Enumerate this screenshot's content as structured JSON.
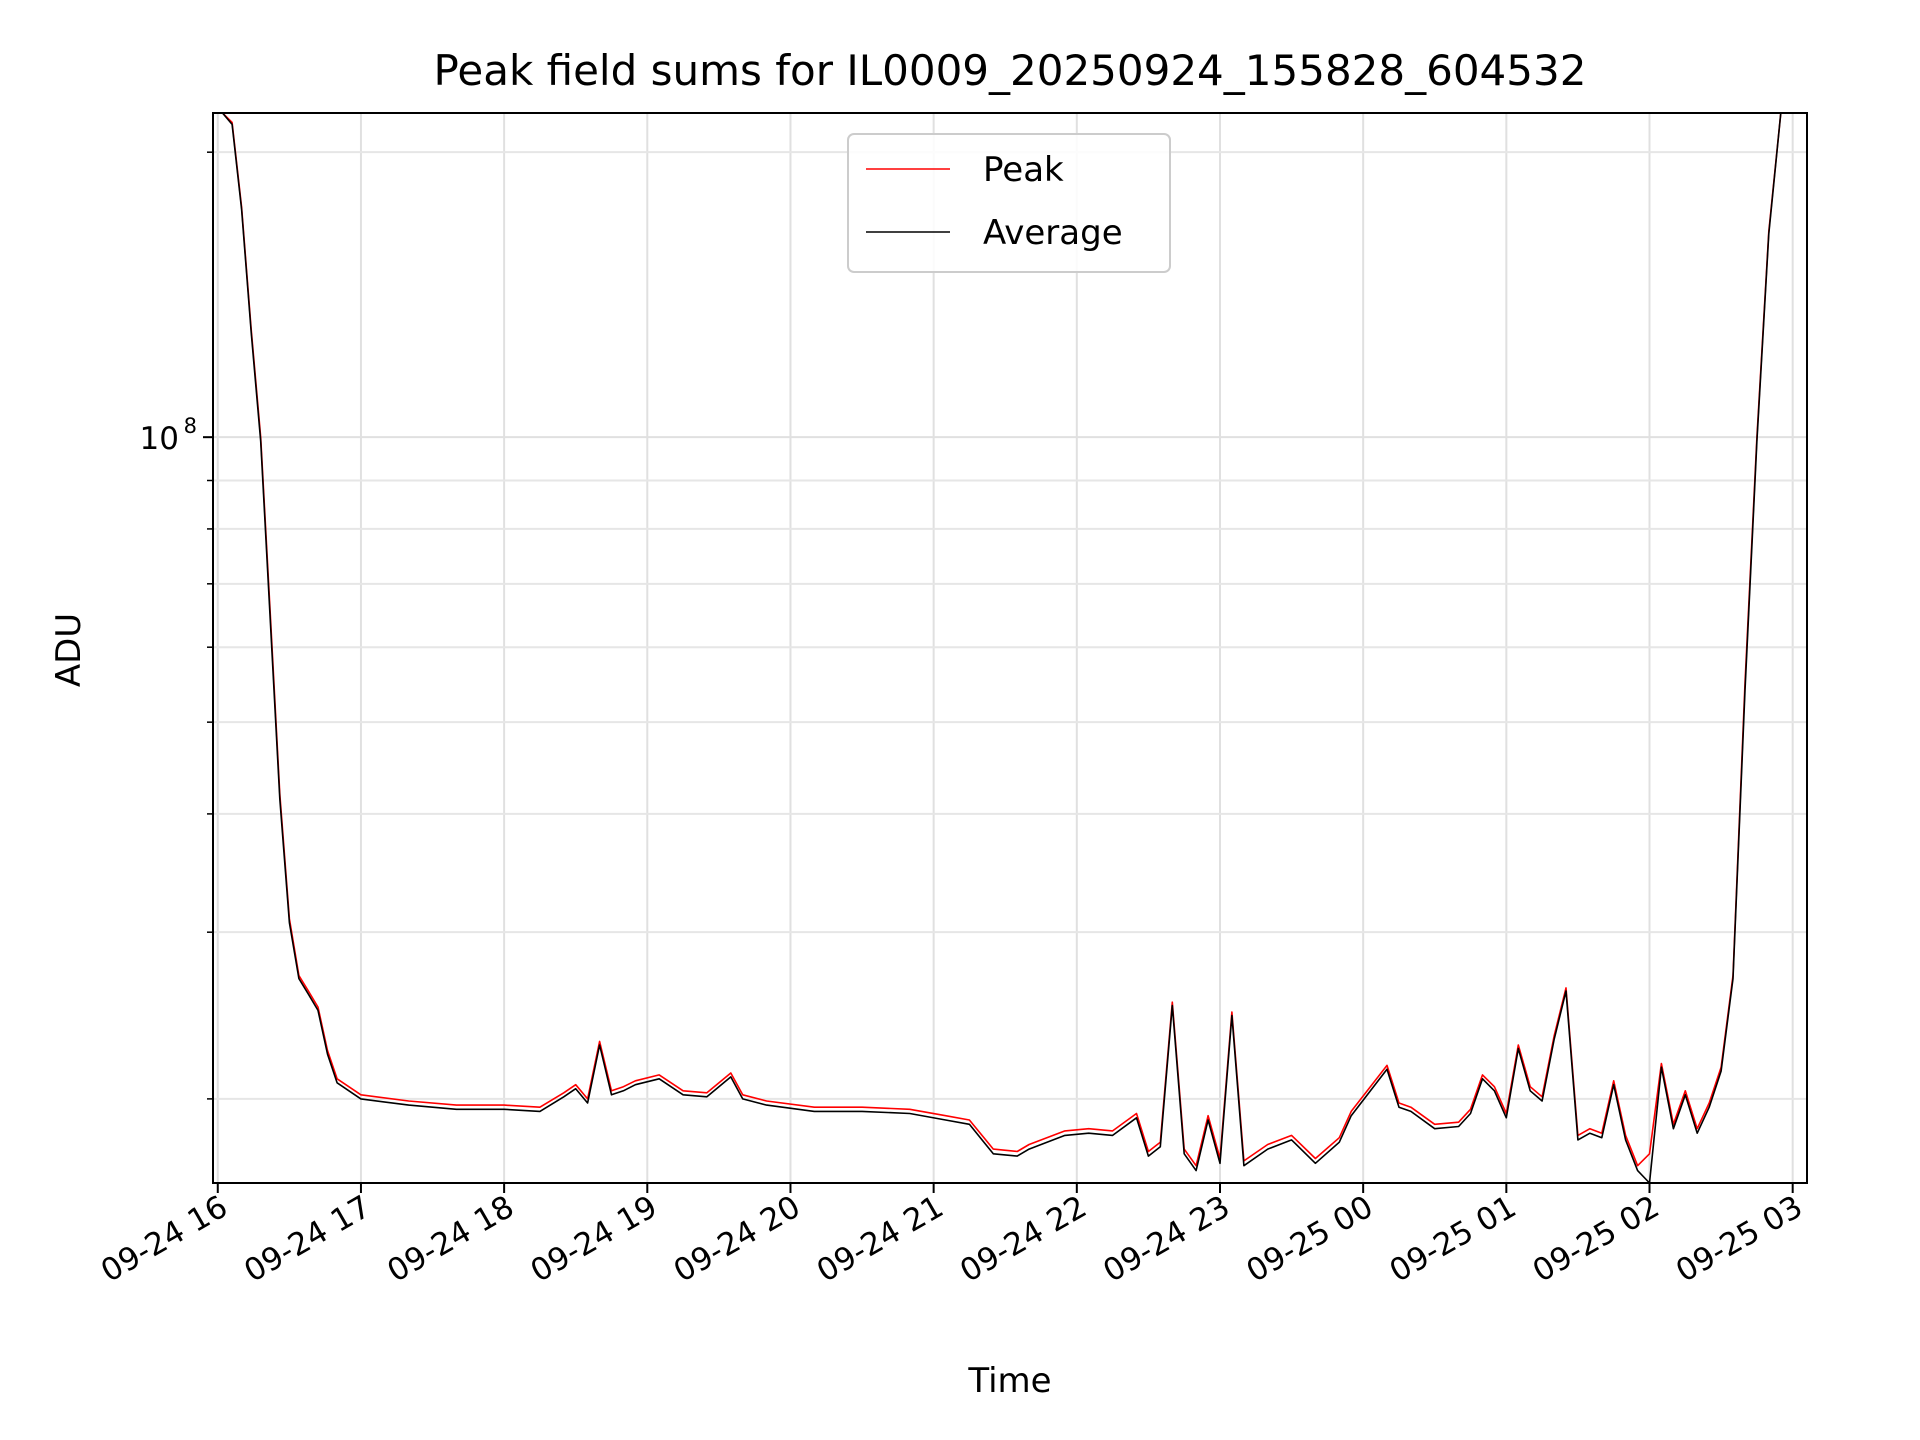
{
  "chart_data": {
    "type": "line",
    "title": "Peak field sums for IL0009_20250924_155828_604532",
    "xlabel": "Time",
    "ylabel": "ADU",
    "y_scale": "log",
    "y_tick_labels": [
      {
        "base": "10",
        "exponent": "8",
        "value": 100000000
      }
    ],
    "ylim": [
      16300000,
      220000000
    ],
    "x_tick_labels": [
      "09-24 16",
      "09-24 17",
      "09-24 18",
      "09-24 19",
      "09-24 20",
      "09-24 21",
      "09-24 22",
      "09-24 23",
      "09-25 00",
      "09-25 01",
      "09-25 02",
      "09-25 03"
    ],
    "xlim": [
      "2025-09-24 15:58",
      "2025-09-25 03:06"
    ],
    "grid": true,
    "legend_position": "top-center",
    "colors": {
      "Peak": "#ff0000",
      "Average": "#000000"
    },
    "series": [
      {
        "name": "Peak",
        "x": [
          "2025-09-24 15:58",
          "2025-09-24 16:02",
          "2025-09-24 16:06",
          "2025-09-24 16:10",
          "2025-09-24 16:14",
          "2025-09-24 16:18",
          "2025-09-24 16:22",
          "2025-09-24 16:26",
          "2025-09-24 16:30",
          "2025-09-24 16:34",
          "2025-09-24 16:38",
          "2025-09-24 16:42",
          "2025-09-24 16:46",
          "2025-09-24 16:50",
          "2025-09-24 17:00",
          "2025-09-24 17:20",
          "2025-09-24 17:40",
          "2025-09-24 18:00",
          "2025-09-24 18:15",
          "2025-09-24 18:25",
          "2025-09-24 18:30",
          "2025-09-24 18:35",
          "2025-09-24 18:40",
          "2025-09-24 18:45",
          "2025-09-24 18:50",
          "2025-09-24 18:55",
          "2025-09-24 19:05",
          "2025-09-24 19:15",
          "2025-09-24 19:25",
          "2025-09-24 19:35",
          "2025-09-24 19:40",
          "2025-09-24 19:50",
          "2025-09-24 20:10",
          "2025-09-24 20:30",
          "2025-09-24 20:50",
          "2025-09-24 21:05",
          "2025-09-24 21:15",
          "2025-09-24 21:25",
          "2025-09-24 21:35",
          "2025-09-24 21:40",
          "2025-09-24 21:55",
          "2025-09-24 22:05",
          "2025-09-24 22:15",
          "2025-09-24 22:25",
          "2025-09-24 22:30",
          "2025-09-24 22:35",
          "2025-09-24 22:40",
          "2025-09-24 22:45",
          "2025-09-24 22:50",
          "2025-09-24 22:55",
          "2025-09-24 23:00",
          "2025-09-24 23:05",
          "2025-09-24 23:10",
          "2025-09-24 23:20",
          "2025-09-24 23:30",
          "2025-09-24 23:40",
          "2025-09-24 23:50",
          "2025-09-24 23:55",
          "2025-09-25 00:10",
          "2025-09-25 00:15",
          "2025-09-25 00:20",
          "2025-09-25 00:30",
          "2025-09-25 00:40",
          "2025-09-25 00:45",
          "2025-09-25 00:50",
          "2025-09-25 00:55",
          "2025-09-25 01:00",
          "2025-09-25 01:05",
          "2025-09-25 01:10",
          "2025-09-25 01:15",
          "2025-09-25 01:20",
          "2025-09-25 01:25",
          "2025-09-25 01:30",
          "2025-09-25 01:35",
          "2025-09-25 01:40",
          "2025-09-25 01:45",
          "2025-09-25 01:50",
          "2025-09-25 01:55",
          "2025-09-25 02:00",
          "2025-09-25 02:05",
          "2025-09-25 02:10",
          "2025-09-25 02:15",
          "2025-09-25 02:20",
          "2025-09-25 02:25",
          "2025-09-25 02:30",
          "2025-09-25 02:35",
          "2025-09-25 02:40",
          "2025-09-25 02:45",
          "2025-09-25 02:50",
          "2025-09-25 02:55"
        ],
        "values": [
          220000000,
          220000000,
          215000000,
          175000000,
          130000000,
          100000000,
          65000000,
          42000000,
          31000000,
          27000000,
          26000000,
          25000000,
          22500000,
          21000000,
          20200000,
          19900000,
          19700000,
          19700000,
          19600000,
          20300000,
          20700000,
          20000000,
          23000000,
          20400000,
          20600000,
          20900000,
          21200000,
          20400000,
          20300000,
          21300000,
          20200000,
          19900000,
          19600000,
          19600000,
          19500000,
          19200000,
          19000000,
          17700000,
          17600000,
          17900000,
          18500000,
          18600000,
          18500000,
          19300000,
          17600000,
          18000000,
          25300000,
          17700000,
          17000000,
          19200000,
          17300000,
          24700000,
          17200000,
          17900000,
          18300000,
          17300000,
          18200000,
          19400000,
          21700000,
          19800000,
          19600000,
          18800000,
          18900000,
          19500000,
          21200000,
          20600000,
          19300000,
          22800000,
          20600000,
          20100000,
          23300000,
          26200000,
          18300000,
          18600000,
          18400000,
          20900000,
          18300000,
          17000000,
          17500000,
          21800000,
          18800000,
          20400000,
          18600000,
          19800000,
          21600000,
          27000000,
          55000000,
          100000000,
          165000000,
          220000000
        ]
      },
      {
        "name": "Average",
        "x": [
          "2025-09-24 15:58",
          "2025-09-24 16:02",
          "2025-09-24 16:06",
          "2025-09-24 16:10",
          "2025-09-24 16:14",
          "2025-09-24 16:18",
          "2025-09-24 16:22",
          "2025-09-24 16:26",
          "2025-09-24 16:30",
          "2025-09-24 16:34",
          "2025-09-24 16:38",
          "2025-09-24 16:42",
          "2025-09-24 16:46",
          "2025-09-24 16:50",
          "2025-09-24 17:00",
          "2025-09-24 17:20",
          "2025-09-24 17:40",
          "2025-09-24 18:00",
          "2025-09-24 18:15",
          "2025-09-24 18:25",
          "2025-09-24 18:30",
          "2025-09-24 18:35",
          "2025-09-24 18:40",
          "2025-09-24 18:45",
          "2025-09-24 18:50",
          "2025-09-24 18:55",
          "2025-09-24 19:05",
          "2025-09-24 19:15",
          "2025-09-24 19:25",
          "2025-09-24 19:35",
          "2025-09-24 19:40",
          "2025-09-24 19:50",
          "2025-09-24 20:10",
          "2025-09-24 20:30",
          "2025-09-24 20:50",
          "2025-09-24 21:05",
          "2025-09-24 21:15",
          "2025-09-24 21:25",
          "2025-09-24 21:35",
          "2025-09-24 21:40",
          "2025-09-24 21:55",
          "2025-09-24 22:05",
          "2025-09-24 22:15",
          "2025-09-24 22:25",
          "2025-09-24 22:30",
          "2025-09-24 22:35",
          "2025-09-24 22:40",
          "2025-09-24 22:45",
          "2025-09-24 22:50",
          "2025-09-24 22:55",
          "2025-09-24 23:00",
          "2025-09-24 23:05",
          "2025-09-24 23:10",
          "2025-09-24 23:20",
          "2025-09-24 23:30",
          "2025-09-24 23:40",
          "2025-09-24 23:50",
          "2025-09-24 23:55",
          "2025-09-25 00:10",
          "2025-09-25 00:15",
          "2025-09-25 00:20",
          "2025-09-25 00:30",
          "2025-09-25 00:40",
          "2025-09-25 00:45",
          "2025-09-25 00:50",
          "2025-09-25 00:55",
          "2025-09-25 01:00",
          "2025-09-25 01:05",
          "2025-09-25 01:10",
          "2025-09-25 01:15",
          "2025-09-25 01:20",
          "2025-09-25 01:25",
          "2025-09-25 01:30",
          "2025-09-25 01:35",
          "2025-09-25 01:40",
          "2025-09-25 01:45",
          "2025-09-25 01:50",
          "2025-09-25 01:55",
          "2025-09-25 02:00",
          "2025-09-25 02:05",
          "2025-09-25 02:10",
          "2025-09-25 02:15",
          "2025-09-25 02:20",
          "2025-09-25 02:25",
          "2025-09-25 02:30",
          "2025-09-25 02:35",
          "2025-09-25 02:40",
          "2025-09-25 02:45",
          "2025-09-25 02:50",
          "2025-09-25 02:55"
        ],
        "values": [
          220000000,
          220000000,
          214000000,
          174000000,
          129000000,
          99000000,
          64000000,
          41500000,
          30700000,
          26800000,
          25800000,
          24800000,
          22300000,
          20800000,
          20000000,
          19700000,
          19500000,
          19500000,
          19400000,
          20100000,
          20500000,
          19800000,
          22800000,
          20200000,
          20400000,
          20700000,
          21000000,
          20200000,
          20100000,
          21100000,
          20000000,
          19700000,
          19400000,
          19400000,
          19300000,
          19000000,
          18800000,
          17500000,
          17400000,
          17700000,
          18300000,
          18400000,
          18300000,
          19100000,
          17400000,
          17800000,
          25100000,
          17500000,
          16800000,
          19000000,
          17100000,
          24500000,
          17000000,
          17700000,
          18100000,
          17100000,
          18000000,
          19200000,
          21500000,
          19600000,
          19400000,
          18600000,
          18700000,
          19300000,
          21000000,
          20400000,
          19100000,
          22600000,
          20400000,
          19900000,
          23100000,
          26000000,
          18100000,
          18400000,
          18200000,
          20700000,
          18100000,
          16800000,
          16300000,
          21600000,
          18600000,
          20200000,
          18400000,
          19600000,
          21400000,
          26800000,
          54000000,
          99000000,
          164000000,
          220000000
        ]
      }
    ]
  }
}
